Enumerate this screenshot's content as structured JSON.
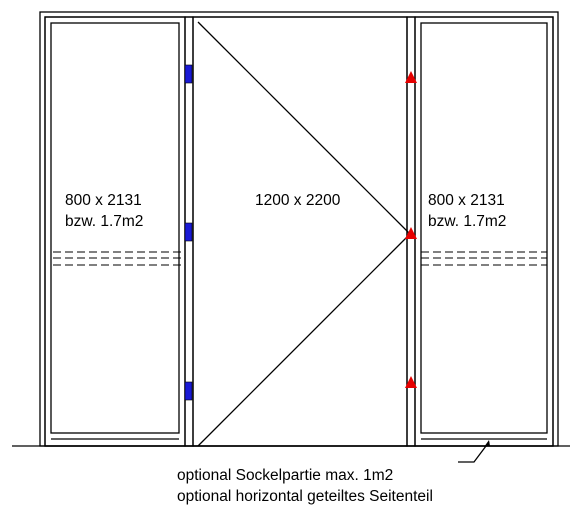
{
  "left_panel": {
    "dimensions": "800 x 2131",
    "area": "bzw. 1.7m2"
  },
  "center_panel": {
    "dimensions": "1200 x 2200"
  },
  "right_panel": {
    "dimensions": "800 x 2131",
    "area": "bzw. 1.7m2"
  },
  "notes": {
    "plinth": "optional Sockelpartie max. 1m2",
    "split": "optional horizontal geteiltes Seitenteil"
  },
  "colors": {
    "line": "#000000",
    "hinge": "#1a1ad6",
    "lock_marker": "#e60000"
  }
}
